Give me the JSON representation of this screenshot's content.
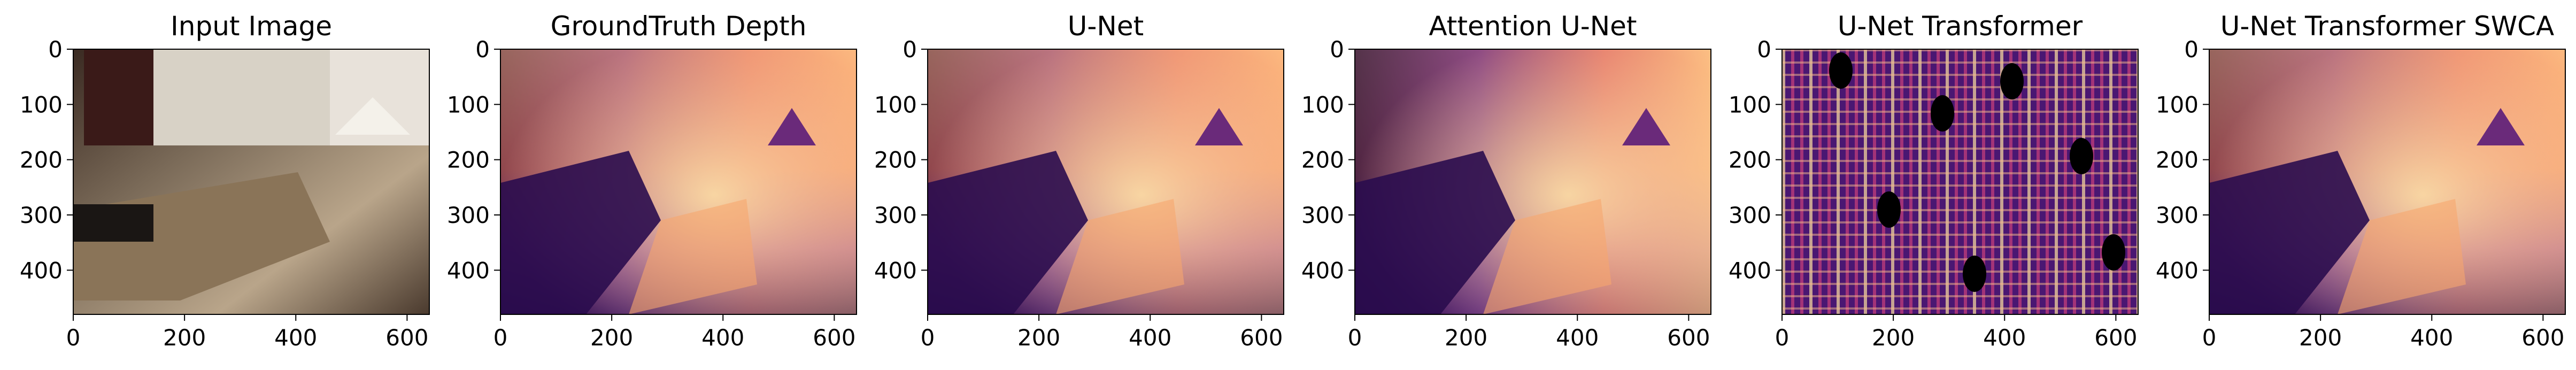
{
  "figure": {
    "panels": [
      {
        "title": "Input Image",
        "kind": "rgb"
      },
      {
        "title": "GroundTruth Depth",
        "kind": "depth"
      },
      {
        "title": "U-Net",
        "kind": "depth"
      },
      {
        "title": "Attention U-Net",
        "kind": "depth"
      },
      {
        "title": "U-Net Transformer",
        "kind": "noise"
      },
      {
        "title": "U-Net Transformer SWCA",
        "kind": "depth"
      }
    ],
    "axes": {
      "x_ticks": [
        "0",
        "200",
        "400",
        "600"
      ],
      "y_ticks": [
        "0",
        "100",
        "200",
        "300",
        "400"
      ],
      "x_range": [
        0,
        640
      ],
      "y_range": [
        0,
        480
      ]
    },
    "colormap": "magma"
  }
}
